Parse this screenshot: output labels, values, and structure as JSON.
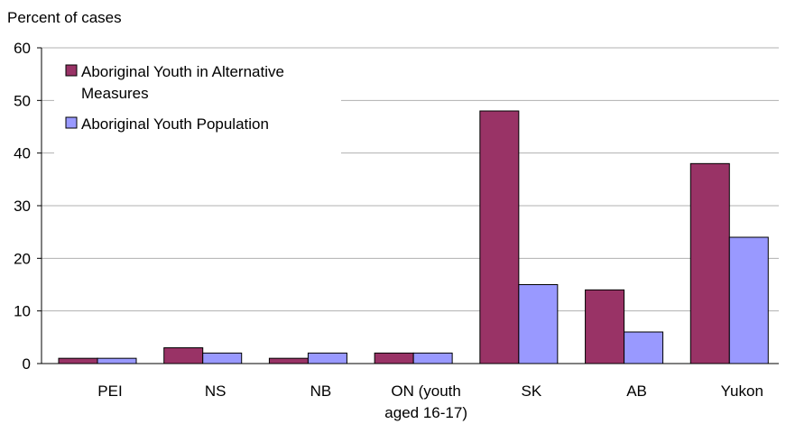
{
  "chart_data": {
    "type": "bar",
    "ylabel": "Percent of cases",
    "ylim": [
      0,
      60
    ],
    "yticks": [
      0,
      10,
      20,
      30,
      40,
      50,
      60
    ],
    "grid": true,
    "legend_position": "top-left",
    "categories": [
      [
        "PEI"
      ],
      [
        "NS"
      ],
      [
        "NB"
      ],
      [
        "ON (youth",
        "aged 16-17)"
      ],
      [
        "SK"
      ],
      [
        "AB"
      ],
      [
        "Yukon"
      ]
    ],
    "series": [
      {
        "name_lines": [
          "Aboriginal Youth in Alternative",
          "Measures"
        ],
        "color": "#993366",
        "values": [
          1,
          3,
          1,
          2,
          48,
          14,
          38
        ]
      },
      {
        "name_lines": [
          "Aboriginal Youth Population"
        ],
        "color": "#9999ff",
        "values": [
          1,
          2,
          2,
          2,
          15,
          6,
          24
        ]
      }
    ]
  }
}
